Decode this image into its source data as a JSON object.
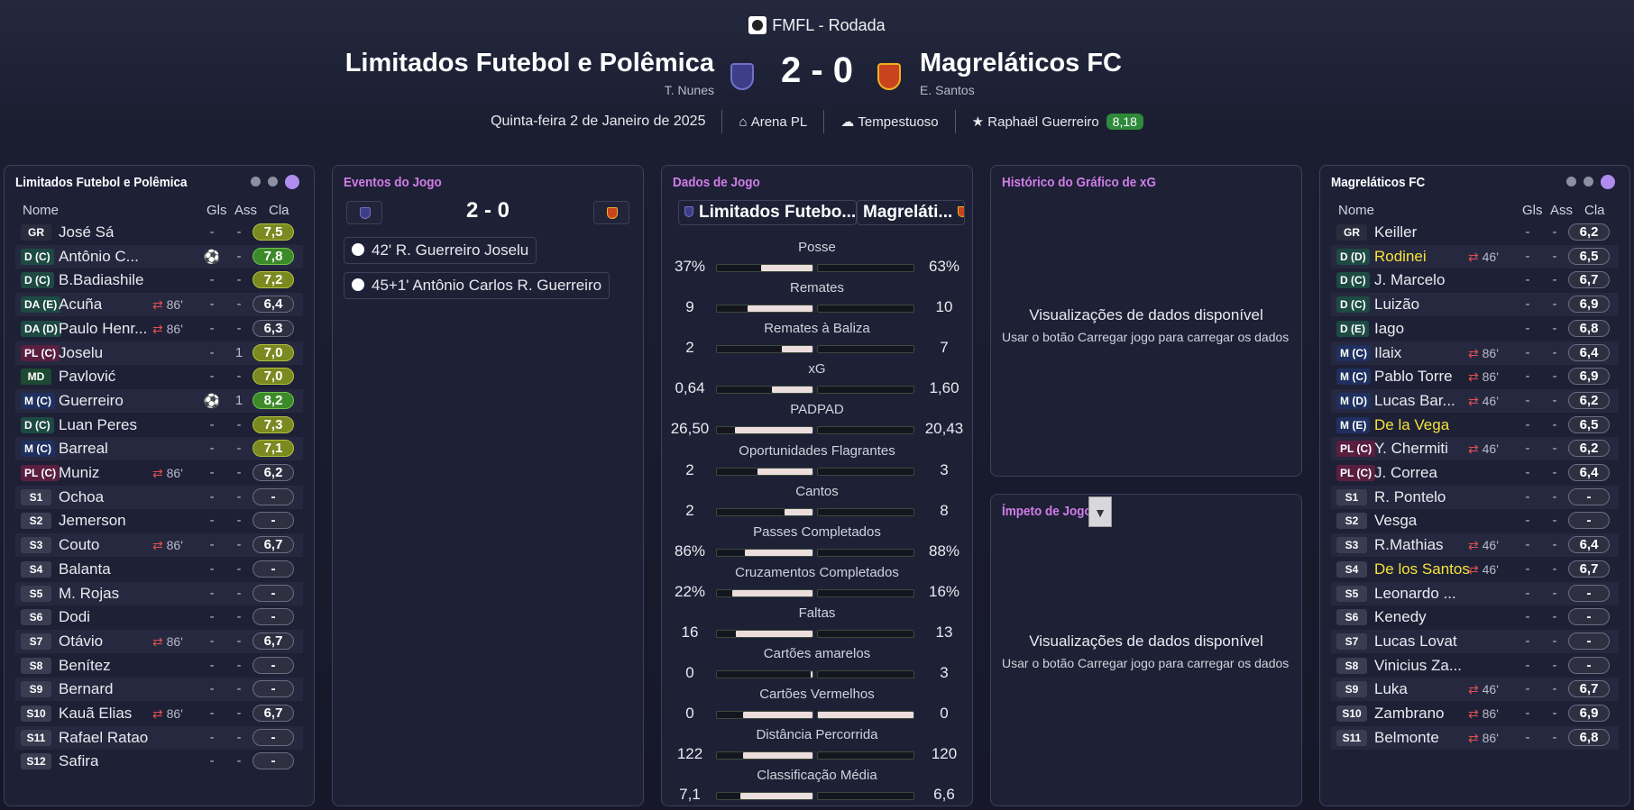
{
  "header": {
    "competition": "FMFL - Rodada",
    "home_team": "Limitados Futebol e Polêmica",
    "away_team": "Magreláticos FC",
    "score": "2 - 0",
    "home_manager": "T. Nunes",
    "away_manager": "E. Santos",
    "date": "Quinta-feira 2 de Janeiro de 2025",
    "stadium": "Arena PL",
    "weather": "Tempestuoso",
    "player_of_match": "Raphaël Guerreiro",
    "pom_rating": "8,18"
  },
  "home_panel": {
    "title": "Limitados Futebol e Polêmica",
    "col_name": "Nome",
    "col_gls": "Gls",
    "col_ass": "Ass",
    "col_cla": "Cla",
    "players": [
      {
        "pos": "GR",
        "name": "José Sá",
        "ev": "",
        "gls": "-",
        "ass": "-",
        "cla": "7,5"
      },
      {
        "pos": "D (C)",
        "name": "Antônio C...",
        "ev": "",
        "gls": "",
        "ass": "-",
        "cla": "7,8"
      },
      {
        "pos": "D (C)",
        "name": "B.Badiashile",
        "ev": "",
        "gls": "-",
        "ass": "-",
        "cla": "7,2"
      },
      {
        "pos": "DA (E)",
        "name": "Acuña",
        "ev": "86'",
        "gls": "-",
        "ass": "-",
        "cla": "6,4"
      },
      {
        "pos": "DA (D)",
        "name": "Paulo Henr...",
        "ev": "86'",
        "gls": "-",
        "ass": "-",
        "cla": "6,3"
      },
      {
        "pos": "PL (C)",
        "name": "Joselu",
        "ev": "",
        "gls": "-",
        "ass": "1",
        "cla": "7,0"
      },
      {
        "pos": "MD",
        "name": "Pavlović",
        "ev": "",
        "gls": "-",
        "ass": "-",
        "cla": "7,0"
      },
      {
        "pos": "M (C)",
        "name": "Guerreiro",
        "ev": "",
        "gls": "",
        "ass": "1",
        "cla": "8,2"
      },
      {
        "pos": "D (C)",
        "name": "Luan Peres",
        "ev": "",
        "gls": "-",
        "ass": "-",
        "cla": "7,3"
      },
      {
        "pos": "M (C)",
        "name": "Barreal",
        "ev": "",
        "gls": "-",
        "ass": "-",
        "cla": "7,1"
      },
      {
        "pos": "PL (C)",
        "name": "Muniz",
        "ev": "86'",
        "gls": "-",
        "ass": "-",
        "cla": "6,2"
      },
      {
        "pos": "S1",
        "name": "Ochoa",
        "ev": "",
        "gls": "-",
        "ass": "-",
        "cla": "-"
      },
      {
        "pos": "S2",
        "name": "Jemerson",
        "ev": "",
        "gls": "-",
        "ass": "-",
        "cla": "-"
      },
      {
        "pos": "S3",
        "name": "Couto",
        "ev": "86'",
        "gls": "-",
        "ass": "-",
        "cla": "6,7"
      },
      {
        "pos": "S4",
        "name": "Balanta",
        "ev": "",
        "gls": "-",
        "ass": "-",
        "cla": "-"
      },
      {
        "pos": "S5",
        "name": "M. Rojas",
        "ev": "",
        "gls": "-",
        "ass": "-",
        "cla": "-"
      },
      {
        "pos": "S6",
        "name": "Dodi",
        "ev": "",
        "gls": "-",
        "ass": "-",
        "cla": "-"
      },
      {
        "pos": "S7",
        "name": "Otávio",
        "ev": "86'",
        "gls": "-",
        "ass": "-",
        "cla": "6,7"
      },
      {
        "pos": "S8",
        "name": "Benítez",
        "ev": "",
        "gls": "-",
        "ass": "-",
        "cla": "-"
      },
      {
        "pos": "S9",
        "name": "Bernard",
        "ev": "",
        "gls": "-",
        "ass": "-",
        "cla": "-"
      },
      {
        "pos": "S10",
        "name": "Kauã Elias",
        "ev": "86'",
        "gls": "-",
        "ass": "-",
        "cla": "6,7"
      },
      {
        "pos": "S11",
        "name": "Rafael Ratao",
        "ev": "",
        "gls": "-",
        "ass": "-",
        "cla": "-"
      },
      {
        "pos": "S12",
        "name": "Safira",
        "ev": "",
        "gls": "-",
        "ass": "-",
        "cla": "-"
      }
    ]
  },
  "events_panel": {
    "title": "Eventos do Jogo",
    "score": "2 - 0",
    "events": [
      "42' R. Guerreiro Joselu",
      "45+1' Antônio Carlos R. Guerreiro"
    ]
  },
  "stats_panel": {
    "title": "Dados de Jogo",
    "home_label": "Limitados Futebo...",
    "away_label": "Magreláti...",
    "stats": [
      {
        "label": "Posse",
        "home": "37%",
        "away": "63%",
        "h": 0.37,
        "a": 0.63
      },
      {
        "label": "Remates",
        "home": "9",
        "away": "10",
        "h": 0.47,
        "a": 0.53
      },
      {
        "label": "Remates à Baliza",
        "home": "2",
        "away": "7",
        "h": 0.22,
        "a": 0.78
      },
      {
        "label": "xG",
        "home": "0,64",
        "away": "1,60",
        "h": 0.29,
        "a": 0.71
      },
      {
        "label": "PADPAD",
        "home": "26,50",
        "away": "20,43",
        "h": 0.56,
        "a": 0.44
      },
      {
        "label": "Oportunidades Flagrantes",
        "home": "2",
        "away": "3",
        "h": 0.4,
        "a": 0.6
      },
      {
        "label": "Cantos",
        "home": "2",
        "away": "8",
        "h": 0.2,
        "a": 0.8
      },
      {
        "label": "Passes Completados",
        "home": "86%",
        "away": "88%",
        "h": 0.49,
        "a": 0.51
      },
      {
        "label": "Cruzamentos Completados",
        "home": "22%",
        "away": "16%",
        "h": 0.58,
        "a": 0.42
      },
      {
        "label": "Faltas",
        "home": "16",
        "away": "13",
        "h": 0.55,
        "a": 0.45
      },
      {
        "label": "Cartões amarelos",
        "home": "0",
        "away": "3",
        "h": 0.01,
        "a": 0.99
      },
      {
        "label": "Cartões Vermelhos",
        "home": "0",
        "away": "0",
        "h": 0.5,
        "a": 0.5
      },
      {
        "label": "Distância Percorrida",
        "home": "122",
        "away": "120",
        "h": 0.5,
        "a": 0.5
      },
      {
        "label": "Classificação Média",
        "home": "7,1",
        "away": "6,6",
        "h": 0.52,
        "a": 0.48
      }
    ]
  },
  "xg_panel": {
    "title": "Histórico do Gráfico de xG",
    "heading": "Visualizações de dados disponível",
    "text": "Usar o botão Carregar jogo para carregar os dados"
  },
  "momentum_panel": {
    "title": "Ímpeto de Jogo",
    "heading": "Visualizações de dados disponível",
    "text": "Usar o botão Carregar jogo para carregar os dados"
  },
  "away_panel": {
    "title": "Magreláticos FC",
    "col_name": "Nome",
    "col_gls": "Gls",
    "col_ass": "Ass",
    "col_cla": "Cla",
    "players": [
      {
        "pos": "GR",
        "name": "Keiller",
        "ev": "",
        "gls": "-",
        "ass": "-",
        "cla": "6,2"
      },
      {
        "pos": "D (D)",
        "name": "Rodinei",
        "ev": "46'",
        "gls": "-",
        "ass": "-",
        "cla": "6,5",
        "yellow": true
      },
      {
        "pos": "D (C)",
        "name": "J. Marcelo",
        "ev": "",
        "gls": "-",
        "ass": "-",
        "cla": "6,7"
      },
      {
        "pos": "D (C)",
        "name": "Luizão",
        "ev": "",
        "gls": "-",
        "ass": "-",
        "cla": "6,9"
      },
      {
        "pos": "D (E)",
        "name": "Iago",
        "ev": "",
        "gls": "-",
        "ass": "-",
        "cla": "6,8"
      },
      {
        "pos": "M (C)",
        "name": "Ilaix",
        "ev": "86'",
        "gls": "-",
        "ass": "-",
        "cla": "6,4"
      },
      {
        "pos": "M (C)",
        "name": "Pablo Torre",
        "ev": "86'",
        "gls": "-",
        "ass": "-",
        "cla": "6,9"
      },
      {
        "pos": "M (D)",
        "name": "Lucas Bar...",
        "ev": "46'",
        "gls": "-",
        "ass": "-",
        "cla": "6,2"
      },
      {
        "pos": "M (E)",
        "name": "De la Vega",
        "ev": "",
        "gls": "-",
        "ass": "-",
        "cla": "6,5",
        "yellow": true
      },
      {
        "pos": "PL (C)",
        "name": "Y. Chermiti",
        "ev": "46'",
        "gls": "-",
        "ass": "-",
        "cla": "6,2"
      },
      {
        "pos": "PL (C)",
        "name": "J. Correa",
        "ev": "",
        "gls": "-",
        "ass": "-",
        "cla": "6,4"
      },
      {
        "pos": "S1",
        "name": "R. Pontelo",
        "ev": "",
        "gls": "-",
        "ass": "-",
        "cla": "-"
      },
      {
        "pos": "S2",
        "name": "Vesga",
        "ev": "",
        "gls": "-",
        "ass": "-",
        "cla": "-"
      },
      {
        "pos": "S3",
        "name": "R.Mathias",
        "ev": "46'",
        "gls": "-",
        "ass": "-",
        "cla": "6,4"
      },
      {
        "pos": "S4",
        "name": "De los Santos",
        "ev": "46'",
        "gls": "-",
        "ass": "-",
        "cla": "6,7",
        "yellow": true
      },
      {
        "pos": "S5",
        "name": "Leonardo ...",
        "ev": "",
        "gls": "-",
        "ass": "-",
        "cla": "-"
      },
      {
        "pos": "S6",
        "name": "Kenedy",
        "ev": "",
        "gls": "-",
        "ass": "-",
        "cla": "-"
      },
      {
        "pos": "S7",
        "name": "Lucas Lovat",
        "ev": "",
        "gls": "-",
        "ass": "-",
        "cla": "-"
      },
      {
        "pos": "S8",
        "name": "Vinicius Za...",
        "ev": "",
        "gls": "-",
        "ass": "-",
        "cla": "-"
      },
      {
        "pos": "S9",
        "name": "Luka",
        "ev": "46'",
        "gls": "-",
        "ass": "-",
        "cla": "6,7"
      },
      {
        "pos": "S10",
        "name": "Zambrano",
        "ev": "86'",
        "gls": "-",
        "ass": "-",
        "cla": "6,9"
      },
      {
        "pos": "S11",
        "name": "Belmonte",
        "ev": "86'",
        "gls": "-",
        "ass": "-",
        "cla": "6,8"
      }
    ]
  },
  "colors": {
    "accent": "#d07de6",
    "rating_green": "#2e8a3a",
    "highlight_name": "#f5e33a"
  }
}
